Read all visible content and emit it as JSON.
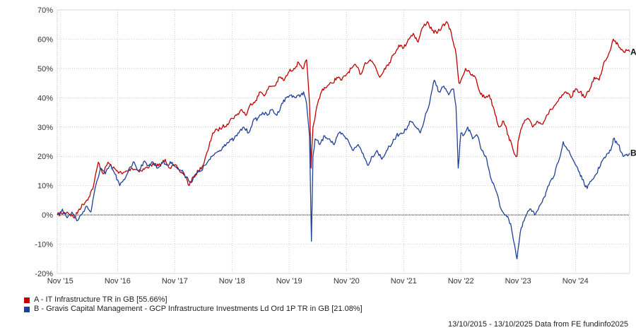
{
  "chart_data": {
    "type": "line",
    "title": "",
    "xlabel": "",
    "ylabel": "",
    "x_range": [
      "2015-10-13",
      "2025-10-13"
    ],
    "ylim": [
      -20,
      70
    ],
    "y_ticks": [
      70,
      60,
      50,
      40,
      30,
      20,
      10,
      0,
      -10,
      -20
    ],
    "y_tick_labels": [
      "70%",
      "60%",
      "50%",
      "40%",
      "30%",
      "20%",
      "10%",
      "0%",
      "-10%",
      "-20%"
    ],
    "x_ticks": [
      {
        "label": "Nov '15",
        "date": "2015-11-01"
      },
      {
        "label": "Nov '16",
        "date": "2016-11-01"
      },
      {
        "label": "Nov '17",
        "date": "2017-11-01"
      },
      {
        "label": "Nov '18",
        "date": "2018-11-01"
      },
      {
        "label": "Nov '19",
        "date": "2019-11-01"
      },
      {
        "label": "Nov '20",
        "date": "2020-11-01"
      },
      {
        "label": "Nov '21",
        "date": "2021-11-01"
      },
      {
        "label": "Nov '22",
        "date": "2022-11-01"
      },
      {
        "label": "Nov '23",
        "date": "2023-11-01"
      },
      {
        "label": "Nov '24",
        "date": "2024-11-01"
      }
    ],
    "grid": true,
    "zero_line": true,
    "series": [
      {
        "name": "A - IT Infrastructure TR in GB [55.66%]",
        "end_label": "A",
        "color": "#c00000",
        "points": [
          [
            "2015-10-13",
            0
          ],
          [
            "2015-12-15",
            1
          ],
          [
            "2016-02-01",
            -1
          ],
          [
            "2016-03-01",
            2
          ],
          [
            "2016-05-01",
            6
          ],
          [
            "2016-06-01",
            10
          ],
          [
            "2016-07-01",
            18
          ],
          [
            "2016-08-01",
            14
          ],
          [
            "2016-09-01",
            18
          ],
          [
            "2016-10-01",
            16
          ],
          [
            "2016-11-01",
            15
          ],
          [
            "2016-12-01",
            14
          ],
          [
            "2017-02-01",
            16
          ],
          [
            "2017-04-01",
            15
          ],
          [
            "2017-06-01",
            17
          ],
          [
            "2017-08-01",
            17
          ],
          [
            "2017-09-01",
            19
          ],
          [
            "2017-10-01",
            16
          ],
          [
            "2017-11-01",
            17
          ],
          [
            "2017-12-01",
            15
          ],
          [
            "2018-01-01",
            14
          ],
          [
            "2018-02-01",
            10
          ],
          [
            "2018-03-01",
            13
          ],
          [
            "2018-04-01",
            15
          ],
          [
            "2018-05-01",
            17
          ],
          [
            "2018-06-01",
            22
          ],
          [
            "2018-07-01",
            28
          ],
          [
            "2018-08-01",
            29
          ],
          [
            "2018-09-01",
            30
          ],
          [
            "2018-10-01",
            31
          ],
          [
            "2018-11-01",
            33
          ],
          [
            "2018-12-01",
            34
          ],
          [
            "2019-01-01",
            36
          ],
          [
            "2019-02-01",
            34
          ],
          [
            "2019-03-01",
            38
          ],
          [
            "2019-04-01",
            39
          ],
          [
            "2019-05-01",
            42
          ],
          [
            "2019-06-01",
            41
          ],
          [
            "2019-07-01",
            44
          ],
          [
            "2019-08-01",
            44
          ],
          [
            "2019-09-01",
            47
          ],
          [
            "2019-10-01",
            46
          ],
          [
            "2019-11-01",
            49
          ],
          [
            "2019-12-01",
            50
          ],
          [
            "2020-01-01",
            52
          ],
          [
            "2020-02-01",
            50
          ],
          [
            "2020-02-20",
            53
          ],
          [
            "2020-03-10",
            38
          ],
          [
            "2020-03-20",
            16
          ],
          [
            "2020-04-01",
            30
          ],
          [
            "2020-05-01",
            38
          ],
          [
            "2020-06-01",
            43
          ],
          [
            "2020-07-01",
            44
          ],
          [
            "2020-08-01",
            45
          ],
          [
            "2020-09-01",
            47
          ],
          [
            "2020-10-01",
            46
          ],
          [
            "2020-11-01",
            48
          ],
          [
            "2020-12-01",
            50
          ],
          [
            "2021-01-01",
            51
          ],
          [
            "2021-02-01",
            48
          ],
          [
            "2021-03-01",
            52
          ],
          [
            "2021-04-01",
            53
          ],
          [
            "2021-05-01",
            51
          ],
          [
            "2021-06-01",
            47
          ],
          [
            "2021-07-01",
            50
          ],
          [
            "2021-08-01",
            52
          ],
          [
            "2021-09-01",
            55
          ],
          [
            "2021-10-01",
            58
          ],
          [
            "2021-11-01",
            57
          ],
          [
            "2021-12-01",
            60
          ],
          [
            "2022-01-01",
            62
          ],
          [
            "2022-02-01",
            59
          ],
          [
            "2022-03-01",
            64
          ],
          [
            "2022-04-01",
            66
          ],
          [
            "2022-05-01",
            63
          ],
          [
            "2022-06-01",
            62
          ],
          [
            "2022-07-01",
            64
          ],
          [
            "2022-08-01",
            66
          ],
          [
            "2022-09-01",
            62
          ],
          [
            "2022-10-01",
            55
          ],
          [
            "2022-10-20",
            45
          ],
          [
            "2022-11-01",
            46
          ],
          [
            "2022-12-01",
            50
          ],
          [
            "2023-01-01",
            48
          ],
          [
            "2023-02-01",
            47
          ],
          [
            "2023-03-01",
            42
          ],
          [
            "2023-04-01",
            40
          ],
          [
            "2023-05-01",
            41
          ],
          [
            "2023-06-01",
            36
          ],
          [
            "2023-07-01",
            30
          ],
          [
            "2023-08-01",
            32
          ],
          [
            "2023-09-01",
            27
          ],
          [
            "2023-10-01",
            22
          ],
          [
            "2023-10-25",
            20
          ],
          [
            "2023-11-01",
            25
          ],
          [
            "2023-12-01",
            31
          ],
          [
            "2024-01-01",
            33
          ],
          [
            "2024-02-01",
            30
          ],
          [
            "2024-03-01",
            32
          ],
          [
            "2024-04-01",
            31
          ],
          [
            "2024-05-01",
            34
          ],
          [
            "2024-06-01",
            36
          ],
          [
            "2024-07-01",
            38
          ],
          [
            "2024-08-01",
            40
          ],
          [
            "2024-09-01",
            42
          ],
          [
            "2024-10-01",
            40
          ],
          [
            "2024-11-01",
            43
          ],
          [
            "2024-12-01",
            42
          ],
          [
            "2025-01-01",
            40
          ],
          [
            "2025-02-01",
            43
          ],
          [
            "2025-03-01",
            47
          ],
          [
            "2025-04-01",
            46
          ],
          [
            "2025-05-01",
            52
          ],
          [
            "2025-06-01",
            55
          ],
          [
            "2025-07-01",
            60
          ],
          [
            "2025-08-01",
            58
          ],
          [
            "2025-09-01",
            56
          ],
          [
            "2025-10-13",
            55.66
          ]
        ]
      },
      {
        "name": "B - Gravis Capital Management - GCP Infrastructure Investments Ld Ord 1P TR in GB [21.08%]",
        "end_label": "B",
        "color": "#1f3f99",
        "points": [
          [
            "2015-10-13",
            0
          ],
          [
            "2015-11-15",
            2
          ],
          [
            "2015-12-15",
            -1
          ],
          [
            "2016-01-15",
            1
          ],
          [
            "2016-02-15",
            -2
          ],
          [
            "2016-03-15",
            0
          ],
          [
            "2016-04-15",
            3
          ],
          [
            "2016-05-15",
            1
          ],
          [
            "2016-06-15",
            10
          ],
          [
            "2016-07-15",
            16
          ],
          [
            "2016-08-15",
            14
          ],
          [
            "2016-09-15",
            17
          ],
          [
            "2016-10-15",
            14
          ],
          [
            "2016-11-15",
            10
          ],
          [
            "2016-12-15",
            12
          ],
          [
            "2017-01-15",
            16
          ],
          [
            "2017-02-15",
            18
          ],
          [
            "2017-03-15",
            15
          ],
          [
            "2017-04-15",
            18
          ],
          [
            "2017-05-15",
            17
          ],
          [
            "2017-06-15",
            18
          ],
          [
            "2017-07-15",
            16
          ],
          [
            "2017-08-15",
            18
          ],
          [
            "2017-09-15",
            17
          ],
          [
            "2017-10-15",
            18
          ],
          [
            "2017-11-15",
            16
          ],
          [
            "2017-12-15",
            15
          ],
          [
            "2018-01-15",
            13
          ],
          [
            "2018-02-15",
            11
          ],
          [
            "2018-03-15",
            14
          ],
          [
            "2018-04-15",
            15
          ],
          [
            "2018-05-15",
            17
          ],
          [
            "2018-06-15",
            19
          ],
          [
            "2018-07-15",
            21
          ],
          [
            "2018-08-15",
            22
          ],
          [
            "2018-09-15",
            24
          ],
          [
            "2018-10-15",
            25
          ],
          [
            "2018-11-15",
            26
          ],
          [
            "2018-12-15",
            28
          ],
          [
            "2019-01-15",
            30
          ],
          [
            "2019-02-15",
            28
          ],
          [
            "2019-03-15",
            32
          ],
          [
            "2019-04-15",
            33
          ],
          [
            "2019-05-15",
            35
          ],
          [
            "2019-06-15",
            34
          ],
          [
            "2019-07-15",
            36
          ],
          [
            "2019-08-15",
            34
          ],
          [
            "2019-09-15",
            38
          ],
          [
            "2019-10-15",
            40
          ],
          [
            "2019-11-15",
            41
          ],
          [
            "2019-12-15",
            40
          ],
          [
            "2020-01-15",
            41
          ],
          [
            "2020-02-01",
            42
          ],
          [
            "2020-02-20",
            38
          ],
          [
            "2020-03-10",
            27
          ],
          [
            "2020-03-22",
            -9
          ],
          [
            "2020-04-01",
            20
          ],
          [
            "2020-04-15",
            26
          ],
          [
            "2020-05-15",
            24
          ],
          [
            "2020-06-15",
            27
          ],
          [
            "2020-07-15",
            26
          ],
          [
            "2020-08-15",
            24
          ],
          [
            "2020-09-15",
            28
          ],
          [
            "2020-10-15",
            27
          ],
          [
            "2020-11-15",
            25
          ],
          [
            "2020-12-15",
            22
          ],
          [
            "2021-01-15",
            24
          ],
          [
            "2021-02-15",
            21
          ],
          [
            "2021-03-15",
            17
          ],
          [
            "2021-04-15",
            20
          ],
          [
            "2021-05-15",
            22
          ],
          [
            "2021-06-15",
            19
          ],
          [
            "2021-07-15",
            22
          ],
          [
            "2021-08-15",
            24
          ],
          [
            "2021-09-15",
            27
          ],
          [
            "2021-10-15",
            28
          ],
          [
            "2021-11-15",
            29
          ],
          [
            "2021-12-15",
            32
          ],
          [
            "2022-01-15",
            30
          ],
          [
            "2022-02-15",
            28
          ],
          [
            "2022-03-15",
            33
          ],
          [
            "2022-04-15",
            38
          ],
          [
            "2022-05-15",
            46
          ],
          [
            "2022-06-15",
            42
          ],
          [
            "2022-07-15",
            44
          ],
          [
            "2022-08-15",
            41
          ],
          [
            "2022-09-15",
            43
          ],
          [
            "2022-10-01",
            37
          ],
          [
            "2022-10-15",
            16
          ],
          [
            "2022-11-01",
            28
          ],
          [
            "2022-11-15",
            27
          ],
          [
            "2022-12-15",
            30
          ],
          [
            "2023-01-15",
            26
          ],
          [
            "2023-02-15",
            27
          ],
          [
            "2023-03-15",
            22
          ],
          [
            "2023-04-15",
            19
          ],
          [
            "2023-05-15",
            12
          ],
          [
            "2023-06-15",
            8
          ],
          [
            "2023-07-15",
            2
          ],
          [
            "2023-08-15",
            0
          ],
          [
            "2023-09-15",
            -3
          ],
          [
            "2023-10-15",
            -12
          ],
          [
            "2023-10-25",
            -15
          ],
          [
            "2023-11-15",
            -6
          ],
          [
            "2023-12-15",
            -1
          ],
          [
            "2024-01-15",
            2
          ],
          [
            "2024-02-15",
            0
          ],
          [
            "2024-03-15",
            3
          ],
          [
            "2024-04-15",
            6
          ],
          [
            "2024-05-15",
            10
          ],
          [
            "2024-06-15",
            13
          ],
          [
            "2024-07-15",
            18
          ],
          [
            "2024-08-15",
            25
          ],
          [
            "2024-09-15",
            22
          ],
          [
            "2024-10-15",
            19
          ],
          [
            "2024-11-15",
            16
          ],
          [
            "2024-12-15",
            12
          ],
          [
            "2025-01-15",
            9
          ],
          [
            "2025-02-15",
            12
          ],
          [
            "2025-03-15",
            14
          ],
          [
            "2025-04-15",
            18
          ],
          [
            "2025-05-15",
            20
          ],
          [
            "2025-06-15",
            22
          ],
          [
            "2025-07-01",
            26
          ],
          [
            "2025-08-01",
            24
          ],
          [
            "2025-09-01",
            20
          ],
          [
            "2025-10-13",
            21.08
          ]
        ]
      }
    ]
  },
  "legend": {
    "items": [
      {
        "text": "A - IT Infrastructure TR in GB [55.66%]",
        "color": "#c00000"
      },
      {
        "text": "B - Gravis Capital Management - GCP Infrastructure Investments Ld Ord 1P TR in GB [21.08%]",
        "color": "#1f3f99"
      }
    ]
  },
  "footer": {
    "text": "13/10/2015 - 13/10/2025 Data from FE fundinfo2025"
  }
}
